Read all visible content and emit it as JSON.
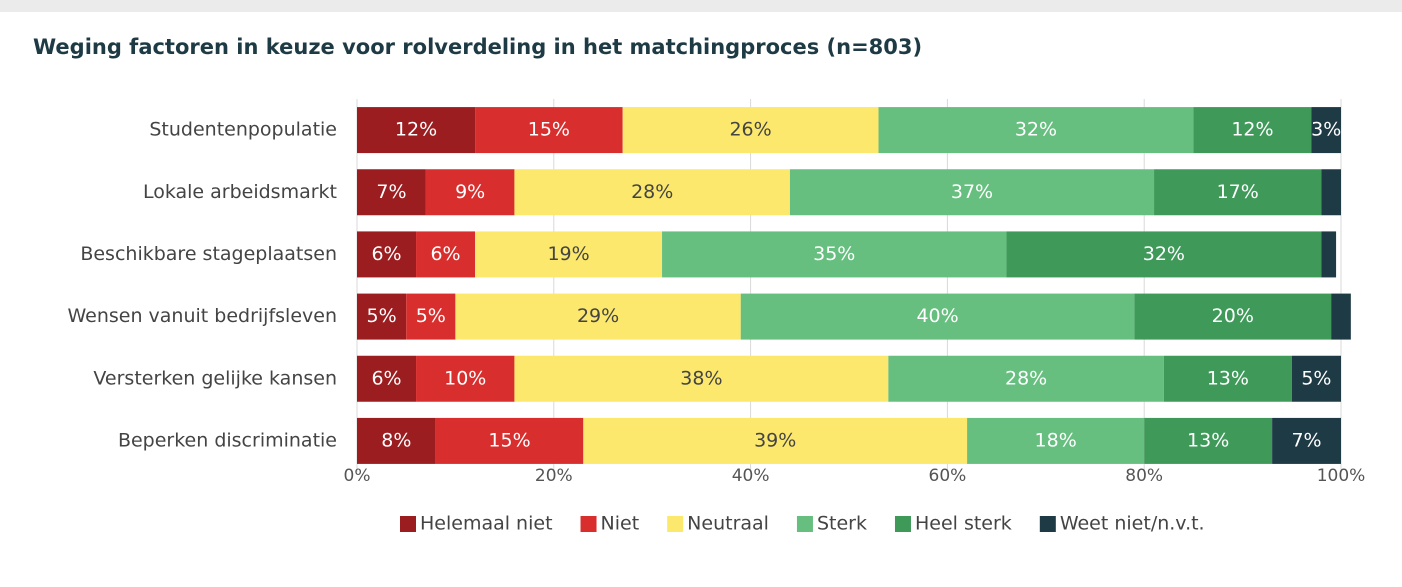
{
  "chart_data": {
    "type": "stacked_bar_horizontal",
    "title": "Weging factoren in keuze voor rolverdeling in het matchingproces  (n=803)",
    "categories": [
      "Studentenpopulatie",
      "Lokale arbeidsmarkt",
      "Beschikbare stageplaatsen",
      "Wensen vanuit bedrijfsleven",
      "Versterken gelijke kansen",
      "Beperken discriminatie"
    ],
    "series": [
      {
        "name": "Helemaal niet",
        "color": "#9b1d20",
        "values": [
          12,
          7,
          6,
          5,
          6,
          8
        ],
        "value_labels": [
          "12%",
          "7%",
          "6%",
          "5%",
          "6%",
          "8%"
        ]
      },
      {
        "name": "Niet",
        "color": "#d82f2e",
        "values": [
          15,
          9,
          6,
          5,
          10,
          15
        ],
        "value_labels": [
          "15%",
          "9%",
          "6%",
          "5%",
          "10%",
          "15%"
        ]
      },
      {
        "name": "Neutraal",
        "color": "#fbe86c",
        "values": [
          26,
          28,
          19,
          29,
          38,
          39
        ],
        "value_labels": [
          "26%",
          "28%",
          "19%",
          "29%",
          "38%",
          "39%"
        ]
      },
      {
        "name": "Sterk",
        "color": "#66bf7f",
        "values": [
          32,
          37,
          35,
          40,
          28,
          18
        ],
        "value_labels": [
          "32%",
          "37%",
          "35%",
          "40%",
          "28%",
          "18%"
        ]
      },
      {
        "name": "Heel sterk",
        "color": "#3f9a5a",
        "values": [
          12,
          17,
          32,
          20,
          13,
          13
        ],
        "value_labels": [
          "12%",
          "17%",
          "32%",
          "20%",
          "13%",
          "13%"
        ]
      },
      {
        "name": "Weet niet/n.v.t.",
        "color": "#1e3a44",
        "values": [
          3,
          2,
          1.5,
          2,
          5,
          7
        ],
        "value_labels": [
          "3%",
          null,
          null,
          null,
          "5%",
          "7%"
        ]
      }
    ],
    "xlim": [
      0,
      100
    ],
    "xticks": [
      {
        "value": 0,
        "label": "0%"
      },
      {
        "value": 20,
        "label": "20%"
      },
      {
        "value": 40,
        "label": "40%"
      },
      {
        "value": 60,
        "label": "60%"
      },
      {
        "value": 80,
        "label": "80%"
      },
      {
        "value": 100,
        "label": "100%"
      }
    ],
    "grid": true,
    "legend": "bottom"
  }
}
